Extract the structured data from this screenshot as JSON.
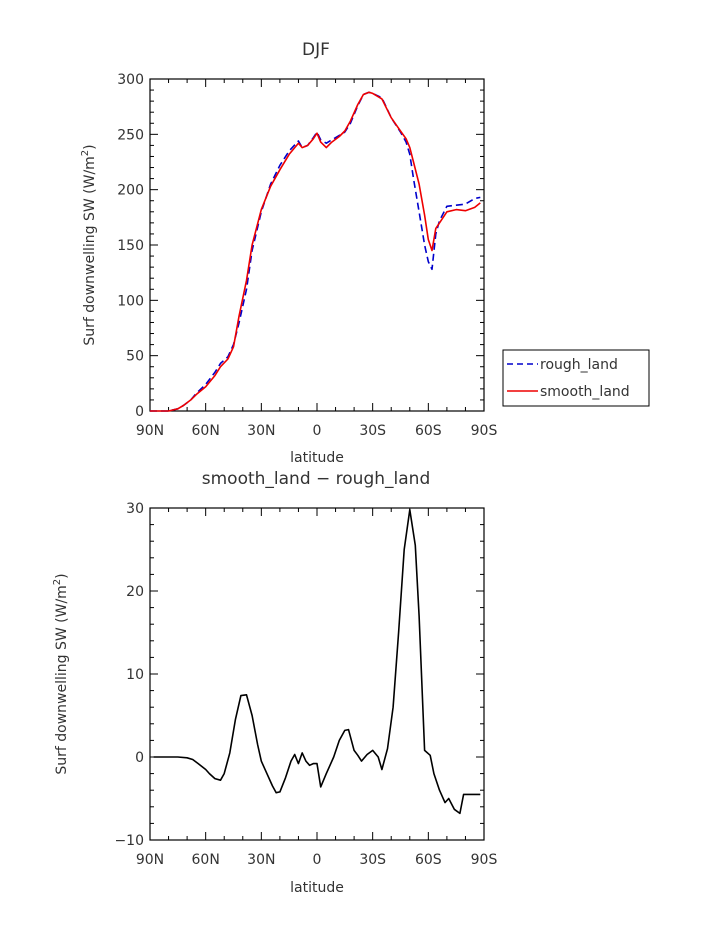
{
  "chart_data": [
    {
      "type": "line",
      "title": "DJF",
      "xlabel": "latitude",
      "ylabel": "Surf downwelling SW (W/m",
      "ylabel_sup": "2",
      "ylabel_end": ")",
      "xlim": [
        90,
        -90
      ],
      "ylim": [
        0,
        300
      ],
      "x_ticks": [
        90,
        60,
        30,
        0,
        -30,
        -60,
        -90
      ],
      "x_tick_labels": [
        "90N",
        "60N",
        "30N",
        "0",
        "30S",
        "60S",
        "90S"
      ],
      "y_ticks": [
        0,
        50,
        100,
        150,
        200,
        250,
        300
      ],
      "y_tick_labels": [
        "0",
        "50",
        "100",
        "150",
        "200",
        "250",
        "300"
      ],
      "legend_position": "right",
      "series": [
        {
          "name": "rough_land",
          "color": "#0000cc",
          "dash": "dashed",
          "x": [
            90,
            85,
            80,
            75,
            72,
            68,
            65,
            60,
            55,
            52,
            48,
            45,
            42,
            38,
            35,
            30,
            25,
            20,
            15,
            10,
            8,
            5,
            2,
            0,
            -2,
            -5,
            -8,
            -12,
            -15,
            -18,
            -22,
            -25,
            -28,
            -30,
            -35,
            -40,
            -45,
            -48,
            -50,
            -52,
            -55,
            -58,
            -60,
            -62,
            -64,
            -66,
            -70,
            -75,
            -80,
            -85,
            -88
          ],
          "y": [
            0,
            0,
            0,
            2,
            5,
            10,
            16,
            24,
            35,
            43,
            49,
            60,
            80,
            110,
            145,
            180,
            205,
            222,
            235,
            244,
            238,
            240,
            247,
            252,
            245,
            242,
            245,
            249,
            252,
            260,
            276,
            286,
            288,
            287,
            283,
            265,
            252,
            243,
            232,
            210,
            180,
            150,
            135,
            128,
            160,
            172,
            185,
            186,
            187,
            192,
            193
          ]
        },
        {
          "name": "smooth_land",
          "color": "#ee0000",
          "dash": "solid",
          "x": [
            90,
            85,
            80,
            75,
            72,
            68,
            65,
            60,
            55,
            52,
            48,
            45,
            42,
            38,
            35,
            30,
            25,
            20,
            15,
            10,
            8,
            5,
            2,
            0,
            -2,
            -5,
            -8,
            -12,
            -15,
            -18,
            -22,
            -25,
            -28,
            -30,
            -35,
            -40,
            -45,
            -48,
            -50,
            -52,
            -55,
            -58,
            -60,
            -62,
            -64,
            -66,
            -70,
            -75,
            -80,
            -85,
            -88
          ],
          "y": [
            0,
            0,
            0,
            2,
            5,
            10,
            15,
            22,
            32,
            40,
            47,
            58,
            86,
            118,
            150,
            182,
            203,
            218,
            232,
            242,
            238,
            240,
            246,
            251,
            243,
            238,
            243,
            248,
            253,
            262,
            277,
            286,
            288,
            287,
            282,
            265,
            253,
            246,
            238,
            225,
            205,
            177,
            155,
            145,
            165,
            170,
            180,
            182,
            181,
            184,
            188
          ]
        }
      ]
    },
    {
      "type": "line",
      "title": "smooth_land − rough_land",
      "xlabel": "latitude",
      "ylabel": "Surf downwelling SW (W/m",
      "ylabel_sup": "2",
      "ylabel_end": ")",
      "xlim": [
        90,
        -90
      ],
      "ylim": [
        -10,
        30
      ],
      "x_ticks": [
        90,
        60,
        30,
        0,
        -30,
        -60,
        -90
      ],
      "x_tick_labels": [
        "90N",
        "60N",
        "30N",
        "0",
        "30S",
        "60S",
        "90S"
      ],
      "y_ticks": [
        -10,
        0,
        10,
        20,
        30
      ],
      "y_tick_labels": [
        "−10",
        "0",
        "10",
        "20",
        "30"
      ],
      "series": [
        {
          "color": "#000000",
          "dash": "solid",
          "x": [
            88,
            80,
            75,
            70,
            67,
            64,
            60,
            58,
            55,
            52,
            50,
            47,
            44,
            41,
            38,
            35,
            32,
            30,
            27,
            24,
            22,
            20,
            17,
            14,
            12,
            10,
            8,
            6,
            4,
            2,
            0,
            -2,
            -5,
            -7,
            -9,
            -12,
            -15,
            -17,
            -20,
            -22,
            -24,
            -27,
            -30,
            -33,
            -35,
            -38,
            -41,
            -44,
            -47,
            -50,
            -53,
            -55,
            -58,
            -61,
            -63,
            -66,
            -69,
            -71,
            -74,
            -77,
            -79,
            -82,
            -84,
            -86,
            -88
          ],
          "y": [
            0,
            0,
            0,
            -0.1,
            -0.3,
            -0.8,
            -1.5,
            -2.0,
            -2.6,
            -2.8,
            -2.0,
            0.5,
            4.5,
            7.4,
            7.5,
            5.0,
            1.5,
            -0.5,
            -2.0,
            -3.5,
            -4.3,
            -4.2,
            -2.5,
            -0.5,
            0.3,
            -0.8,
            0.5,
            -0.5,
            -1.0,
            -0.8,
            -0.8,
            -3.6,
            -2.0,
            -1.0,
            0.0,
            2.0,
            3.2,
            3.3,
            0.8,
            0.2,
            -0.5,
            0.3,
            0.8,
            0,
            -1.5,
            1.0,
            6.0,
            15.0,
            25.0,
            29.8,
            25.5,
            17.0,
            0.8,
            0.2,
            -2.0,
            -4.0,
            -5.5,
            -5.0,
            -6.3,
            -6.8,
            -4.5,
            -4.5,
            -4.5,
            -4.5,
            -4.5
          ]
        }
      ]
    }
  ]
}
